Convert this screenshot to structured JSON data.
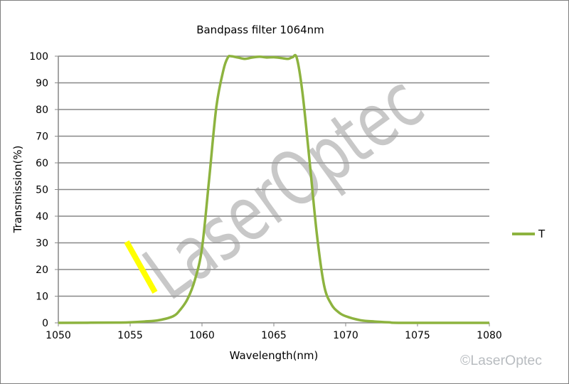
{
  "chart_data": {
    "type": "line",
    "title": "Bandpass filter 1064nm",
    "xlabel": "Wavelength(nm)",
    "ylabel": "Transmission(%)",
    "xlim": [
      1050,
      1080
    ],
    "ylim": [
      0,
      100
    ],
    "xticks": [
      1050,
      1055,
      1060,
      1065,
      1070,
      1075,
      1080
    ],
    "yticks": [
      0,
      10,
      20,
      30,
      40,
      50,
      60,
      70,
      80,
      90,
      100
    ],
    "grid": "horizontal",
    "legend_position": "right",
    "series": [
      {
        "name": "T",
        "color": "#8db33f",
        "x": [
          1050,
          1054,
          1055,
          1056,
          1057,
          1058,
          1058.5,
          1059,
          1059.5,
          1060,
          1060.5,
          1061,
          1061.5,
          1061.8,
          1062,
          1062.5,
          1063,
          1063.5,
          1064,
          1064.5,
          1065,
          1065.5,
          1066,
          1066.3,
          1066.6,
          1067,
          1067.5,
          1068,
          1068.5,
          1069,
          1069.5,
          1070,
          1071,
          1072,
          1073,
          1074,
          1080
        ],
        "y": [
          0,
          0.1,
          0.2,
          0.5,
          1,
          2.5,
          5,
          9,
          16,
          28,
          54,
          81,
          95,
          99.5,
          100,
          99.5,
          99,
          99.5,
          99.8,
          99.5,
          99.6,
          99.3,
          99,
          99.6,
          99.3,
          86,
          60,
          33,
          14,
          7,
          4,
          2.5,
          1,
          0.5,
          0.2,
          0,
          0
        ]
      }
    ]
  },
  "watermark": "LaserOptec",
  "copyright": "©LaserOptec"
}
